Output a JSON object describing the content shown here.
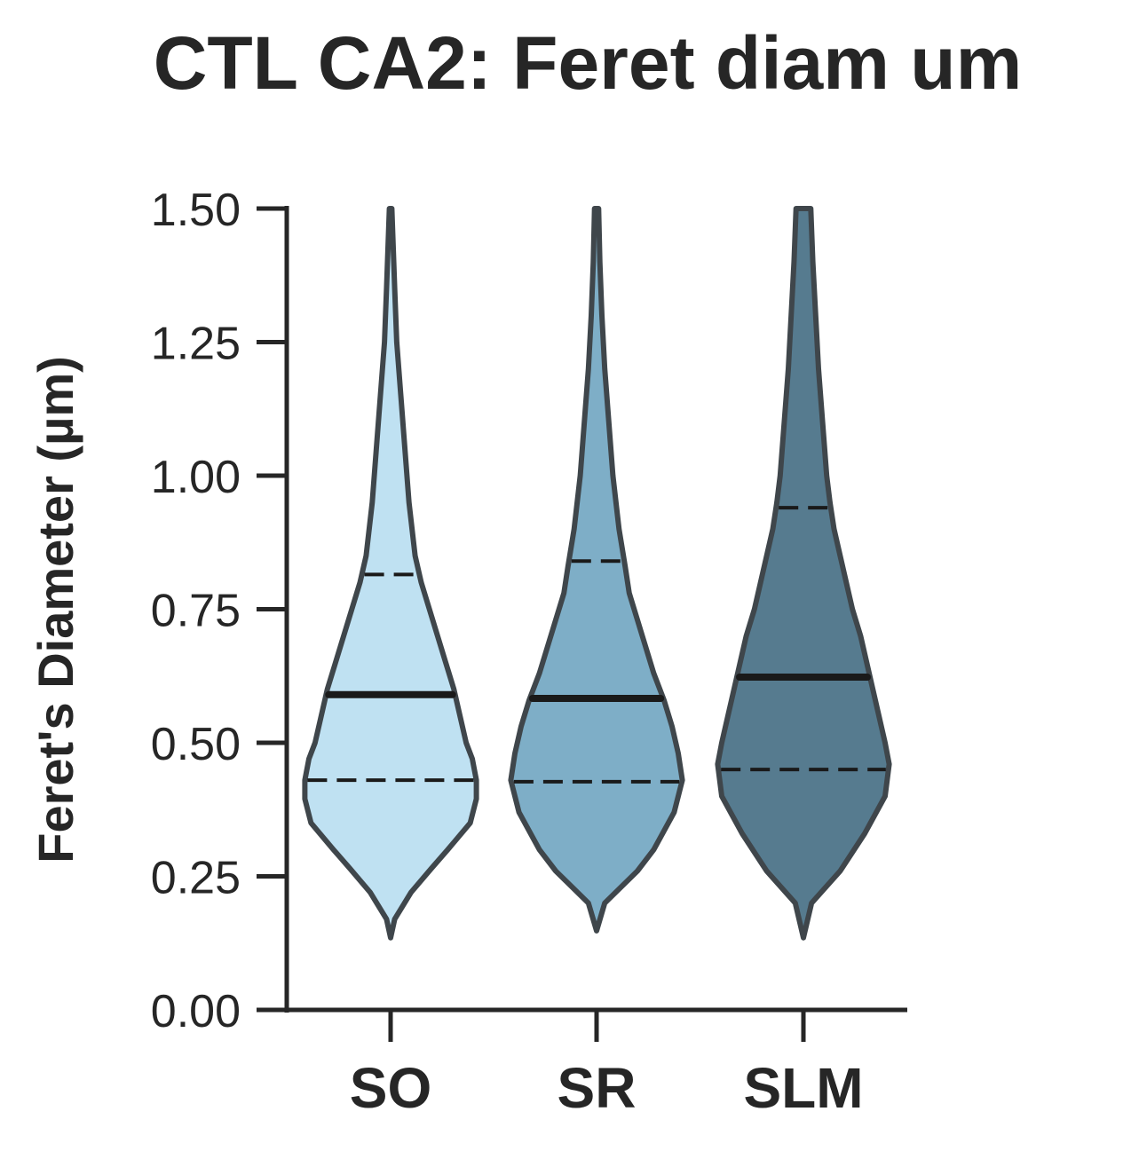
{
  "chart_data": {
    "type": "violin",
    "title": "CTL CA2: Feret diam um",
    "xlabel": "",
    "ylabel": "Feret's Diameter (µm)",
    "ylim": [
      0,
      1.5
    ],
    "yticks": [
      "0.00",
      "0.25",
      "0.50",
      "0.75",
      "1.00",
      "1.25",
      "1.50"
    ],
    "ytick_values": [
      0,
      0.25,
      0.5,
      0.75,
      1.0,
      1.25,
      1.5
    ],
    "categories": [
      "SO",
      "SR",
      "SLM"
    ],
    "grid": false,
    "legend": "none",
    "colors": [
      "#bfe1f2",
      "#7eaec7",
      "#567b8f"
    ],
    "outline_color": "#3f464b",
    "series": [
      {
        "category": "SO",
        "q1": 0.43,
        "median": 0.59,
        "q3": 0.815,
        "min": 0.135,
        "max": 1.5,
        "profile": [
          [
            0.135,
            0.0
          ],
          [
            0.17,
            0.01
          ],
          [
            0.22,
            0.05
          ],
          [
            0.265,
            0.1
          ],
          [
            0.3,
            0.14
          ],
          [
            0.35,
            0.195
          ],
          [
            0.395,
            0.21
          ],
          [
            0.43,
            0.21
          ],
          [
            0.47,
            0.2
          ],
          [
            0.5,
            0.185
          ],
          [
            0.55,
            0.17
          ],
          [
            0.6,
            0.155
          ],
          [
            0.65,
            0.135
          ],
          [
            0.7,
            0.115
          ],
          [
            0.75,
            0.095
          ],
          [
            0.8,
            0.075
          ],
          [
            0.85,
            0.06
          ],
          [
            0.95,
            0.045
          ],
          [
            1.05,
            0.035
          ],
          [
            1.15,
            0.025
          ],
          [
            1.25,
            0.015
          ],
          [
            1.35,
            0.01
          ],
          [
            1.5,
            0.003
          ]
        ]
      },
      {
        "category": "SR",
        "q1": 0.427,
        "median": 0.583,
        "q3": 0.84,
        "min": 0.148,
        "max": 1.5,
        "profile": [
          [
            0.148,
            0.0
          ],
          [
            0.2,
            0.02
          ],
          [
            0.26,
            0.1
          ],
          [
            0.3,
            0.14
          ],
          [
            0.37,
            0.19
          ],
          [
            0.43,
            0.21
          ],
          [
            0.48,
            0.2
          ],
          [
            0.53,
            0.185
          ],
          [
            0.58,
            0.165
          ],
          [
            0.63,
            0.14
          ],
          [
            0.68,
            0.12
          ],
          [
            0.73,
            0.1
          ],
          [
            0.78,
            0.08
          ],
          [
            0.83,
            0.07
          ],
          [
            0.9,
            0.055
          ],
          [
            1.0,
            0.04
          ],
          [
            1.1,
            0.03
          ],
          [
            1.2,
            0.02
          ],
          [
            1.3,
            0.013
          ],
          [
            1.4,
            0.008
          ],
          [
            1.5,
            0.005
          ]
        ]
      },
      {
        "category": "SLM",
        "q1": 0.45,
        "median": 0.623,
        "q3": 0.94,
        "min": 0.135,
        "max": 1.5,
        "profile": [
          [
            0.135,
            0.0
          ],
          [
            0.2,
            0.02
          ],
          [
            0.26,
            0.09
          ],
          [
            0.33,
            0.15
          ],
          [
            0.4,
            0.2
          ],
          [
            0.46,
            0.21
          ],
          [
            0.5,
            0.2
          ],
          [
            0.55,
            0.185
          ],
          [
            0.6,
            0.17
          ],
          [
            0.65,
            0.155
          ],
          [
            0.7,
            0.14
          ],
          [
            0.75,
            0.12
          ],
          [
            0.8,
            0.105
          ],
          [
            0.85,
            0.09
          ],
          [
            0.9,
            0.075
          ],
          [
            0.95,
            0.065
          ],
          [
            1.0,
            0.057
          ],
          [
            1.1,
            0.047
          ],
          [
            1.2,
            0.037
          ],
          [
            1.3,
            0.03
          ],
          [
            1.4,
            0.023
          ],
          [
            1.5,
            0.018
          ]
        ]
      }
    ]
  }
}
